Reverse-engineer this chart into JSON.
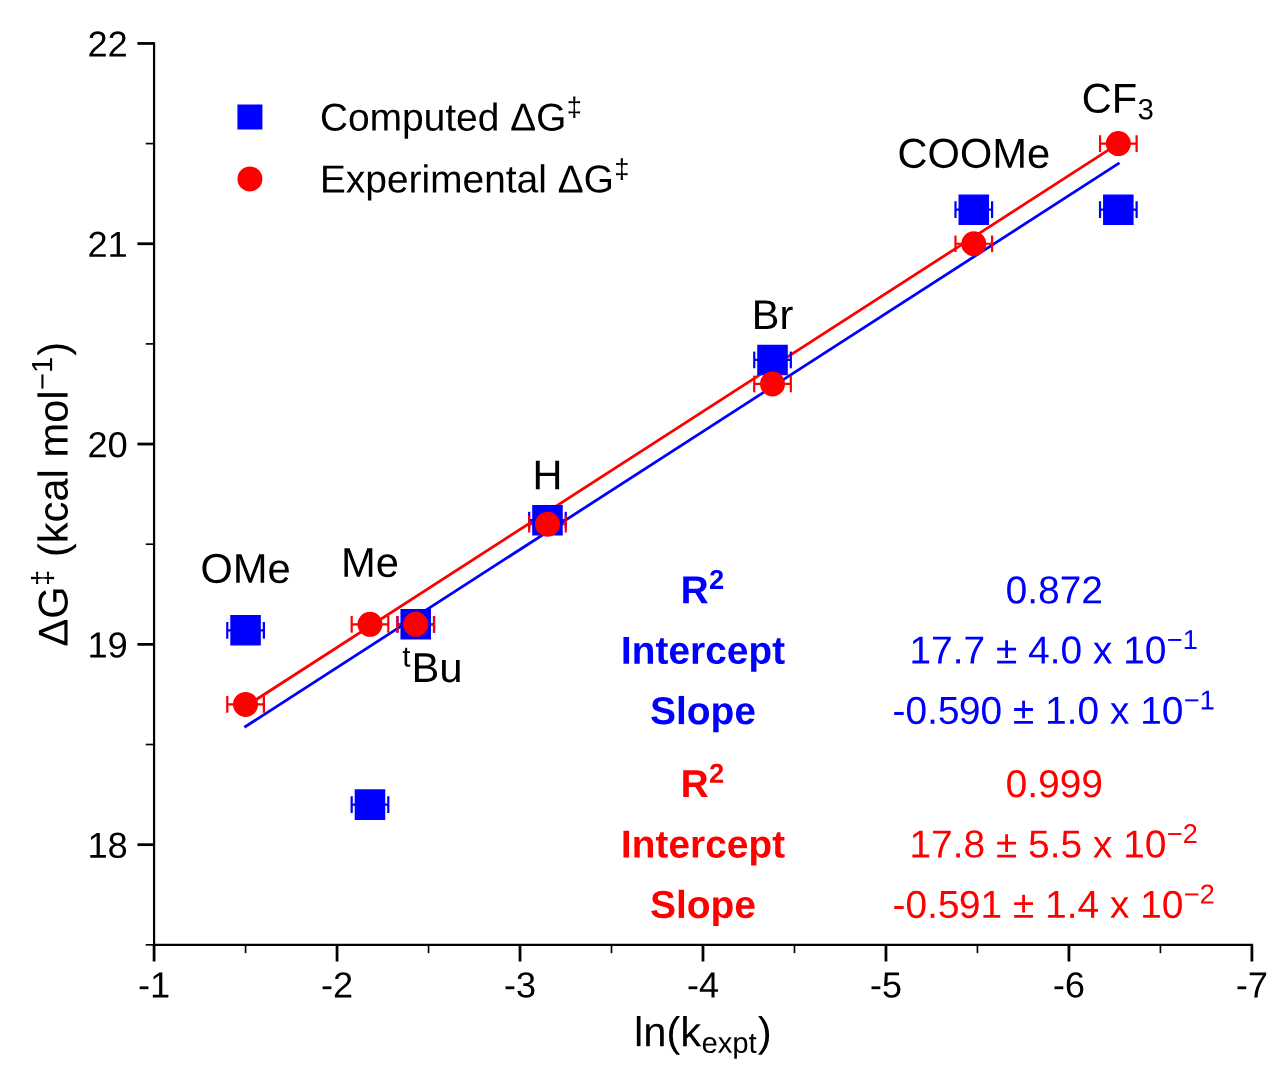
{
  "chart_data": {
    "type": "scatter",
    "xlabel": "ln(k$_{expt}$)",
    "ylabel": "ΔG$^{‡}$ (kcal mol$^{−1}$)",
    "xlim": [
      -1,
      -7
    ],
    "xticks": [
      -1,
      -2,
      -3,
      -4,
      -5,
      -6,
      -7
    ],
    "ylim": [
      17.5,
      22
    ],
    "yticks": [
      18,
      19,
      20,
      21,
      22
    ],
    "legend": "top left",
    "grid": false,
    "series": [
      {
        "name": "Computed ΔG$^{‡}$",
        "color": "#0000ff",
        "marker": "square",
        "x": [
          -1.5,
          -2.18,
          -2.43,
          -3.15,
          -4.38,
          -5.48,
          -6.27
        ],
        "values": [
          19.07,
          18.2,
          19.1,
          19.62,
          20.42,
          21.17,
          21.17
        ],
        "xerrors": [
          0.1,
          0.1,
          0.1,
          0.1,
          0.1,
          0.1,
          0.1
        ]
      },
      {
        "name": "Experimental ΔG$^{‡}$",
        "color": "#ff0000",
        "marker": "circle",
        "x": [
          -1.5,
          -2.18,
          -2.43,
          -3.15,
          -4.38,
          -5.48,
          -6.27
        ],
        "values": [
          18.7,
          19.1,
          19.1,
          19.6,
          20.3,
          21.0,
          21.5
        ],
        "xerrors": [
          0.1,
          0.1,
          0.1,
          0.1,
          0.1,
          0.1,
          0.1
        ]
      },
      {
        "type": "line",
        "color": "#0000ff",
        "marker": "none",
        "x": [
          -1.5,
          -6.27
        ],
        "values": [
          18.59,
          21.4
        ]
      },
      {
        "type": "line",
        "color": "#ff0000",
        "marker": "none",
        "x": [
          -1.5,
          -6.27
        ],
        "values": [
          18.69,
          21.5
        ]
      }
    ],
    "annotations": [
      {
        "text": "OMe",
        "x": -1.5,
        "y": 19.07
      },
      {
        "text": "Me",
        "x": -2.18,
        "y": 19.1
      },
      {
        "text": "$^{t}$Bu",
        "x": -2.43,
        "y": 19.1
      },
      {
        "text": "H",
        "x": -3.15,
        "y": 19.62
      },
      {
        "text": "Br",
        "x": -4.38,
        "y": 20.42
      },
      {
        "text": "COOMe",
        "x": -5.48,
        "y": 21.17
      },
      {
        "text": "CF$_{3}$",
        "x": -6.27,
        "y": 21.5
      },
      "R$^{2}$",
      "0.872",
      "Intercept",
      "17.7 ± 4.0 x 10$^{−1}$",
      "Slope",
      "-0.590 ± 1.0 x 10$^{−1}$",
      "R$^{2}$",
      "0.999",
      "Intercept",
      "17.8 ± 5.5 x 10$^{−2}$",
      "Slope",
      "-0.591 ± 1.4 x 10$^{−2}$"
    ]
  }
}
